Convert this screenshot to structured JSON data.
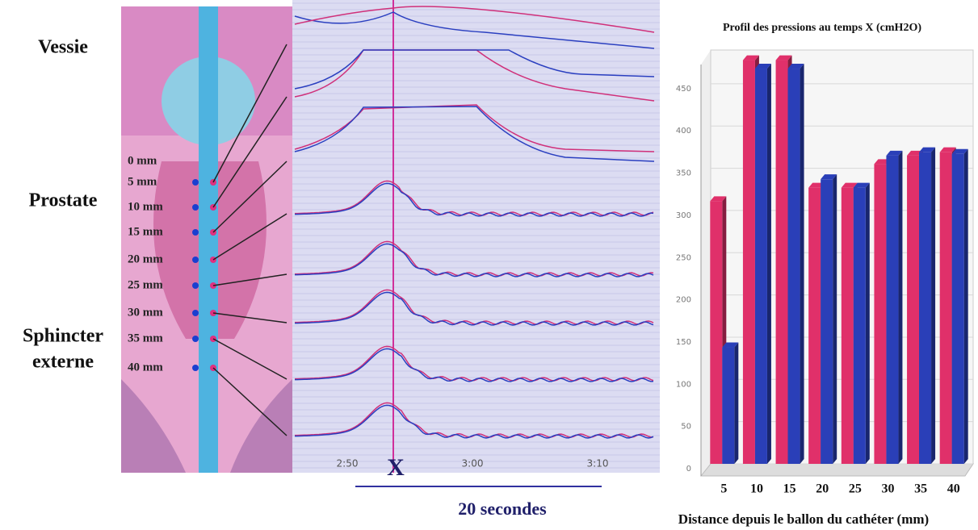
{
  "anatomy": {
    "regions": [
      "Vessie",
      "Prostate",
      "Sphincter",
      "externe"
    ],
    "positions": [
      "0 mm",
      "5 mm",
      "10 mm",
      "15 mm",
      "20 mm",
      "25 mm",
      "30 mm",
      "35 mm",
      "40 mm"
    ]
  },
  "traces": {
    "xticks": [
      "2:50",
      "3:00",
      "3:10"
    ],
    "marker": "X",
    "scale": "20 secondes"
  },
  "chart_data": {
    "type": "bar",
    "title": "Profil des pressions au temps X (cmH2O)",
    "x_label": "Distance depuis le ballon du cathéter (mm)",
    "categories": [
      "5",
      "10",
      "15",
      "20",
      "25",
      "30",
      "35",
      "40"
    ],
    "series": [
      {
        "color": "#e0306a",
        "values": [
          311,
          478,
          478,
          327,
          327,
          355,
          365,
          369
        ]
      },
      {
        "color": "#2a3fb8",
        "values": [
          138,
          468,
          468,
          337,
          327,
          365,
          369,
          367
        ]
      }
    ],
    "ylim": [
      0,
      490
    ],
    "yticks": [
      0,
      50,
      100,
      150,
      200,
      250,
      300,
      350,
      400,
      450
    ],
    "grid": true
  }
}
